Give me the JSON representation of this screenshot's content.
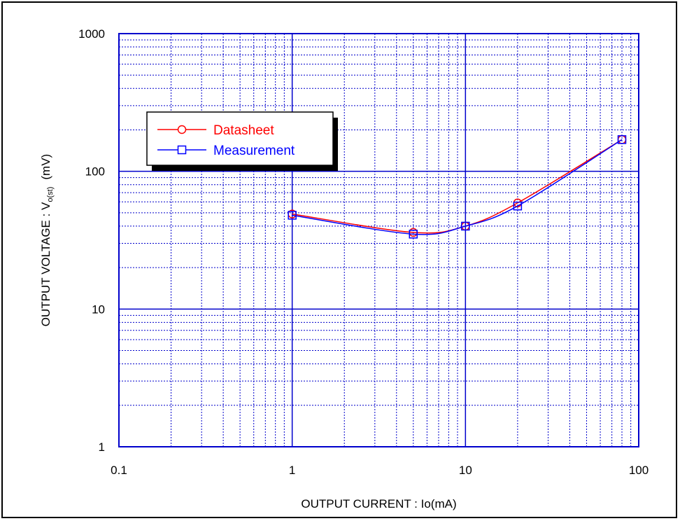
{
  "chart_data": {
    "type": "line",
    "xscale": "log",
    "yscale": "log",
    "xlim": [
      0.1,
      100
    ],
    "ylim": [
      1,
      1000
    ],
    "xticks": [
      "0.1",
      "1",
      "10",
      "100"
    ],
    "yticks": [
      "1",
      "10",
      "100",
      "1000"
    ],
    "xlabel": "OUTPUT CURRENT : Io(mA)",
    "ylabel": {
      "main": "OUTPUT VOLTAGE : V",
      "sub": "o(st)",
      "unit": "(mV)"
    },
    "grid": true,
    "legend_position": "upper-left",
    "series": [
      {
        "name": "Datasheet",
        "color": "#ff0000",
        "marker": "circle",
        "x": [
          1,
          5,
          10,
          20,
          80
        ],
        "y": [
          49,
          36,
          40,
          59,
          170
        ]
      },
      {
        "name": "Measurement",
        "color": "#0000ff",
        "marker": "square",
        "x": [
          1,
          5,
          10,
          20,
          80
        ],
        "y": [
          48,
          35,
          40,
          56,
          170
        ]
      }
    ]
  }
}
